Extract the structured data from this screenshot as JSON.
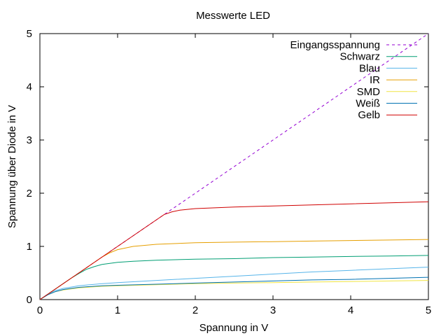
{
  "chart_data": {
    "type": "line",
    "title": "Messwerte LED",
    "xlabel": "Spannung in V",
    "ylabel": "Spannung über Diode in V",
    "xlim": [
      0,
      5
    ],
    "ylim": [
      0,
      5
    ],
    "xticks": [
      0,
      1,
      2,
      3,
      4,
      5
    ],
    "yticks": [
      0,
      1,
      2,
      3,
      4,
      5
    ],
    "grid": false,
    "legend_position": "top-right",
    "series": [
      {
        "name": "Eingangsspannung",
        "color": "#9400d3",
        "dashed": true,
        "x": [
          0,
          1.55,
          5
        ],
        "y": [
          0,
          1.55,
          5
        ]
      },
      {
        "name": "Schwarz",
        "color": "#009e73",
        "dashed": false,
        "x": [
          0,
          0.1,
          0.2,
          0.3,
          0.4,
          0.5,
          0.6,
          0.7,
          0.8,
          0.9,
          1.0,
          1.2,
          1.5,
          2.0,
          2.5,
          3.0,
          3.5,
          4.0,
          4.5,
          5.0
        ],
        "y": [
          0,
          0.1,
          0.2,
          0.3,
          0.4,
          0.49,
          0.57,
          0.62,
          0.66,
          0.68,
          0.7,
          0.72,
          0.74,
          0.76,
          0.77,
          0.79,
          0.8,
          0.81,
          0.82,
          0.83
        ]
      },
      {
        "name": "Blau",
        "color": "#56b4e9",
        "dashed": false,
        "x": [
          0,
          0.1,
          0.2,
          0.3,
          0.5,
          0.8,
          1.0,
          1.5,
          2.0,
          2.5,
          3.0,
          3.5,
          4.0,
          4.5,
          5.0
        ],
        "y": [
          0,
          0.1,
          0.17,
          0.21,
          0.26,
          0.3,
          0.32,
          0.36,
          0.4,
          0.44,
          0.48,
          0.52,
          0.55,
          0.58,
          0.61
        ]
      },
      {
        "name": "IR",
        "color": "#e69f00",
        "dashed": false,
        "x": [
          0,
          0.5,
          0.8,
          0.9,
          1.0,
          1.2,
          1.5,
          2.0,
          2.5,
          3.0,
          3.5,
          4.0,
          4.5,
          5.0
        ],
        "y": [
          0,
          0.5,
          0.8,
          0.88,
          0.94,
          1.0,
          1.04,
          1.07,
          1.08,
          1.09,
          1.1,
          1.11,
          1.12,
          1.13
        ]
      },
      {
        "name": "SMD",
        "color": "#f0e442",
        "dashed": false,
        "x": [
          0,
          0.1,
          0.2,
          0.3,
          0.5,
          0.8,
          1.0,
          1.5,
          2.0,
          2.5,
          3.0,
          3.5,
          4.0,
          4.5,
          5.0
        ],
        "y": [
          0,
          0.09,
          0.15,
          0.18,
          0.22,
          0.25,
          0.26,
          0.28,
          0.3,
          0.31,
          0.32,
          0.33,
          0.34,
          0.35,
          0.36
        ]
      },
      {
        "name": "Weiß",
        "color": "#0072b2",
        "dashed": false,
        "x": [
          0,
          0.1,
          0.2,
          0.3,
          0.5,
          0.8,
          1.0,
          1.5,
          2.0,
          2.5,
          3.0,
          3.5,
          4.0,
          4.5,
          5.0
        ],
        "y": [
          0,
          0.09,
          0.15,
          0.19,
          0.23,
          0.26,
          0.27,
          0.29,
          0.31,
          0.33,
          0.35,
          0.37,
          0.38,
          0.4,
          0.42
        ]
      },
      {
        "name": "Gelb",
        "color": "#d00000",
        "dashed": false,
        "x": [
          0,
          0.5,
          1.0,
          1.5,
          1.6,
          1.7,
          1.8,
          2.0,
          2.5,
          3.0,
          3.5,
          4.0,
          4.5,
          5.0
        ],
        "y": [
          0,
          0.5,
          1.0,
          1.5,
          1.6,
          1.65,
          1.68,
          1.71,
          1.74,
          1.76,
          1.78,
          1.8,
          1.82,
          1.84
        ]
      }
    ]
  }
}
